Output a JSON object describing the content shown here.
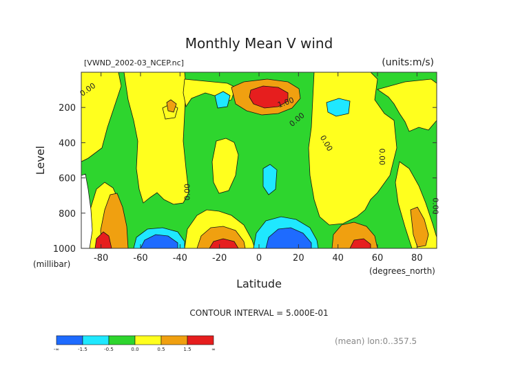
{
  "chart_data": {
    "type": "contour",
    "title": "Monthly Mean V wind",
    "file_label": "[VWND_2002-03_NCEP.nc]",
    "units_label": "(units:m/s)",
    "xlabel": "Latitude",
    "x_unit_label": "(degrees_north)",
    "ylabel": "Level",
    "y_unit_label": "(millibar)",
    "xlim": [
      -90,
      90
    ],
    "ylim": [
      1000,
      0
    ],
    "x_ticks": [
      -80,
      -60,
      -40,
      -20,
      0,
      20,
      40,
      60,
      80
    ],
    "y_ticks": [
      200,
      400,
      600,
      800,
      1000
    ],
    "contour_interval_text": "CONTOUR INTERVAL = 5.000E-01",
    "footer_text": "(mean) lon:0..357.5",
    "contour_labels": [
      {
        "text": "0.00",
        "x": -86,
        "y": 110,
        "rot": -35
      },
      {
        "text": "1.00",
        "x": 14,
        "y": 185,
        "rot": -20
      },
      {
        "text": "0.00",
        "x": 20,
        "y": 280,
        "rot": -40
      },
      {
        "text": "0.00",
        "x": 33,
        "y": 410,
        "rot": 60
      },
      {
        "text": "0.00",
        "x": 61,
        "y": 480,
        "rot": 90
      },
      {
        "text": "0.00",
        "x": -35,
        "y": 680,
        "rot": -90
      },
      {
        "text": "0.00",
        "x": 88,
        "y": 760,
        "rot": 90
      }
    ],
    "colorbar": {
      "levels": [
        "-∞",
        "-1.5",
        "-0.5",
        "0.0",
        "0.5",
        "1.5",
        "∞"
      ],
      "colors": [
        "#1e6bff",
        "#1fe8ff",
        "#2ed52e",
        "#ffff1e",
        "#f0a010",
        "#e61e1e"
      ]
    },
    "level_colors": {
      "lt_-0.5": "#1fe8ff",
      "lt_-1.5": "#1e6bff",
      "-0.5_0": "#2ed52e",
      "0_0.5": "#ffff1e",
      "0.5_1.5": "#f0a010",
      "gt_1.5": "#e61e1e"
    }
  }
}
